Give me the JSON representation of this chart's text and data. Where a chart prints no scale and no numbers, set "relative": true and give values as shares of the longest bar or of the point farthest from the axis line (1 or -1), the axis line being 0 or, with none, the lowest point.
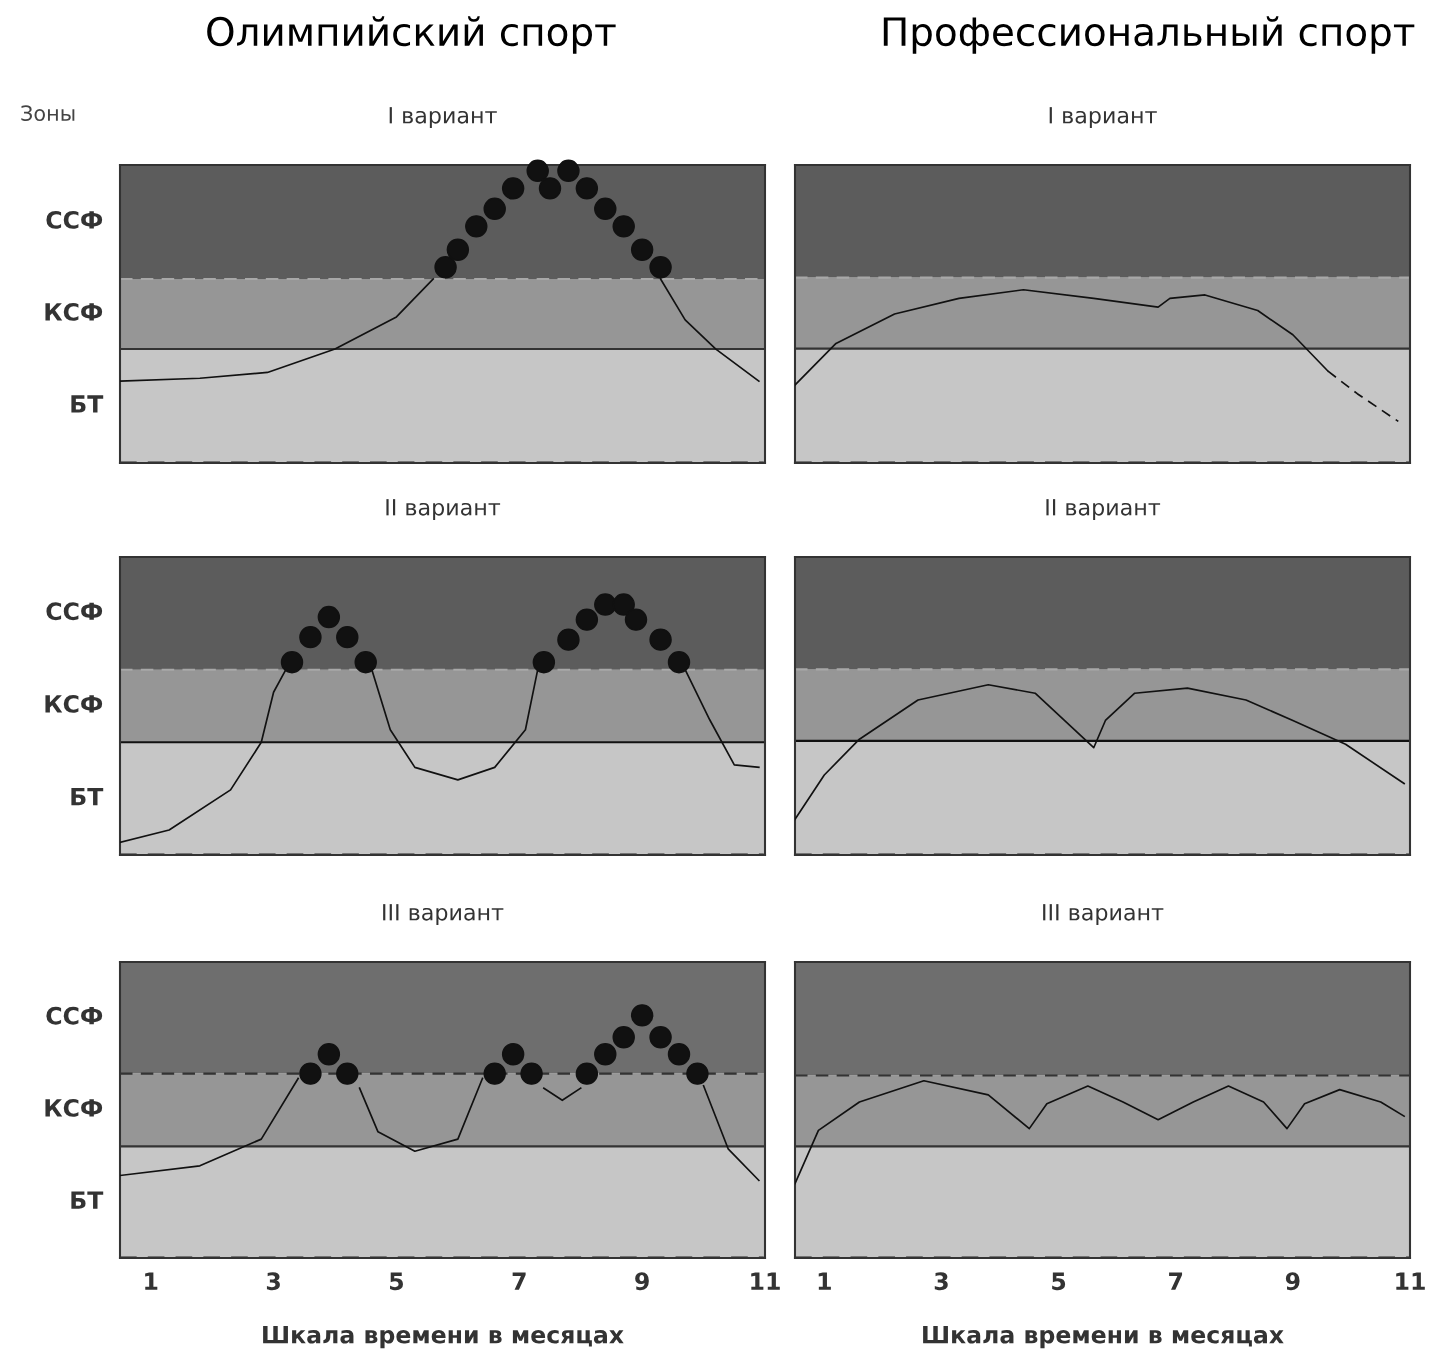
{
  "chart_data": [
    {
      "type": "line",
      "relative": true,
      "title": "I вариант",
      "annotations": [
        "Олимпийский спорт",
        "Зоны"
      ],
      "xlim": [
        0.5,
        11
      ],
      "xticks": [
        1,
        3,
        5,
        7,
        9,
        11
      ],
      "tick_labels": false,
      "bands": [
        {
          "axis": "y",
          "from": 0,
          "to": 0.39,
          "color": "#c6c6c6",
          "label": "БТ"
        },
        {
          "axis": "y",
          "from": 0.39,
          "to": 0.63,
          "color": "#969696",
          "label": "КСФ"
        },
        {
          "axis": "y",
          "from": 0.63,
          "to": 1.02,
          "color": "#5c5c5c",
          "label": "ССФ"
        }
      ],
      "ref_lines": [
        {
          "axis": "y",
          "value": 0.63,
          "color": "#a8a8a8",
          "line_style": "dashed"
        },
        {
          "axis": "y",
          "value": 0.39,
          "color": "#333333",
          "line_style": "solid"
        },
        {
          "axis": "y",
          "value": 0,
          "color": "#222222",
          "line_style": "dashed"
        }
      ],
      "series": [
        {
          "color": "#111111",
          "line_style": "solid",
          "x": [
            0.5,
            1.8,
            2.9,
            4.0,
            5.0,
            5.6,
            null,
            9.3,
            9.7,
            10.2,
            10.9
          ],
          "values": [
            0.28,
            0.29,
            0.31,
            0.39,
            0.5,
            0.63,
            null,
            0.63,
            0.49,
            0.39,
            0.28
          ]
        },
        {
          "type": "scatter",
          "color": "#111111",
          "marker": "circle",
          "x": [
            5.8,
            6.0,
            6.3,
            6.6,
            6.9,
            7.3,
            7.5,
            7.8,
            8.1,
            8.4,
            8.7,
            9.0,
            9.3
          ],
          "values": [
            0.67,
            0.73,
            0.81,
            0.87,
            0.94,
            1,
            0.94,
            1,
            0.94,
            0.87,
            0.81,
            0.73,
            0.67
          ]
        }
      ]
    },
    {
      "type": "line",
      "relative": true,
      "title": "I вариант",
      "annotations": [
        "Профессиональный спорт"
      ],
      "xlim": [
        0.5,
        11
      ],
      "xticks": [
        1,
        3,
        5,
        7,
        9,
        11
      ],
      "tick_labels": false,
      "bands": [
        {
          "axis": "y",
          "from": 0,
          "to": 0.66,
          "color": "#c6c6c6"
        },
        {
          "axis": "y",
          "from": 0.66,
          "to": 1.07,
          "color": "#969696"
        },
        {
          "axis": "y",
          "from": 1.07,
          "to": 1.72,
          "color": "#5c5c5c"
        }
      ],
      "ref_lines": [
        {
          "axis": "y",
          "value": 1.07,
          "color": "#a8a8a8",
          "line_style": "dashed"
        },
        {
          "axis": "y",
          "value": 0.66,
          "color": "#333333",
          "line_style": "solid"
        },
        {
          "axis": "y",
          "value": 0,
          "color": "#222222",
          "line_style": "dashed"
        }
      ],
      "series": [
        {
          "color": "#111111",
          "line_style": "solid",
          "x": [
            0.5,
            1.2,
            2.2,
            3.3,
            4.4,
            5.6,
            6.7,
            6.9,
            7.5,
            8.4,
            9.0,
            9.6
          ],
          "values": [
            0.45,
            0.69,
            0.86,
            0.95,
            1,
            0.95,
            0.9,
            0.95,
            0.97,
            0.88,
            0.74,
            0.53
          ]
        },
        {
          "color": "#111111",
          "line_style": "dashed",
          "x": [
            9.6,
            10.1,
            10.8
          ],
          "values": [
            0.53,
            0.4,
            0.24
          ]
        }
      ]
    },
    {
      "type": "line",
      "relative": true,
      "title": "II вариант",
      "xlim": [
        0.5,
        11
      ],
      "xticks": [
        1,
        3,
        5,
        7,
        9,
        11
      ],
      "tick_labels": false,
      "bands": [
        {
          "axis": "y",
          "from": 0,
          "to": 0.45,
          "color": "#c6c6c6",
          "label": "БТ"
        },
        {
          "axis": "y",
          "from": 0.45,
          "to": 0.74,
          "color": "#969696",
          "label": "КСФ"
        },
        {
          "axis": "y",
          "from": 0.74,
          "to": 1.19,
          "color": "#5c5c5c",
          "label": "ССФ"
        }
      ],
      "ref_lines": [
        {
          "axis": "y",
          "value": 0.74,
          "color": "#a8a8a8",
          "line_style": "dashed"
        },
        {
          "axis": "y",
          "value": 0.45,
          "color": "#111111",
          "line_style": "solid"
        },
        {
          "axis": "y",
          "value": 0,
          "color": "#222222",
          "line_style": "dashed"
        }
      ],
      "series": [
        {
          "color": "#111111",
          "line_style": "solid",
          "x": [
            0.5,
            1.3,
            2.3,
            2.8,
            3.0,
            3.2,
            null,
            4.6,
            4.9,
            5.3,
            6.0,
            6.6,
            7.1,
            7.3,
            null,
            9.7,
            10.1,
            10.5,
            10.9
          ],
          "values": [
            0.05,
            0.1,
            0.26,
            0.45,
            0.65,
            0.74,
            null,
            0.74,
            0.5,
            0.35,
            0.3,
            0.35,
            0.5,
            0.74,
            null,
            0.74,
            0.54,
            0.36,
            0.35
          ]
        },
        {
          "type": "scatter",
          "color": "#111111",
          "marker": "circle",
          "x": [
            3.3,
            3.6,
            3.9,
            4.2,
            4.5,
            7.4,
            7.8,
            8.1,
            8.4,
            8.7,
            8.9,
            9.3,
            9.6
          ],
          "values": [
            0.77,
            0.87,
            0.95,
            0.87,
            0.77,
            0.77,
            0.86,
            0.94,
            1,
            1,
            0.94,
            0.86,
            0.77
          ]
        }
      ]
    },
    {
      "type": "line",
      "relative": true,
      "title": "II вариант",
      "xlim": [
        0.5,
        11
      ],
      "xticks": [
        1,
        3,
        5,
        7,
        9,
        11
      ],
      "tick_labels": false,
      "bands": [
        {
          "axis": "y",
          "from": 0,
          "to": 0.67,
          "color": "#c6c6c6"
        },
        {
          "axis": "y",
          "from": 0.67,
          "to": 1.09,
          "color": "#969696"
        },
        {
          "axis": "y",
          "from": 1.09,
          "to": 1.75,
          "color": "#5c5c5c"
        }
      ],
      "ref_lines": [
        {
          "axis": "y",
          "value": 1.09,
          "color": "#a8a8a8",
          "line_style": "dashed"
        },
        {
          "axis": "y",
          "value": 0.67,
          "color": "#111111",
          "line_style": "solid"
        },
        {
          "axis": "y",
          "value": 0,
          "color": "#222222",
          "line_style": "dashed"
        }
      ],
      "series": [
        {
          "color": "#111111",
          "line_style": "solid",
          "x": [
            0.5,
            1.0,
            1.6,
            2.6,
            3.8,
            4.6,
            5.6,
            5.8,
            6.3,
            7.2,
            8.2,
            9.0,
            9.9,
            10.9
          ],
          "values": [
            0.21,
            0.47,
            0.68,
            0.91,
            1,
            0.95,
            0.63,
            0.79,
            0.95,
            0.98,
            0.91,
            0.79,
            0.65,
            0.42
          ]
        }
      ]
    },
    {
      "type": "line",
      "relative": true,
      "title": "III вариант",
      "xlabel": "Шкала времени в месяцах",
      "xlim": [
        0.5,
        11
      ],
      "xticks": [
        1,
        3,
        5,
        7,
        9,
        11
      ],
      "tick_labels": "x",
      "bands": [
        {
          "axis": "y",
          "from": 0,
          "to": 0.46,
          "color": "#c6c6c6",
          "label": "БТ"
        },
        {
          "axis": "y",
          "from": 0.46,
          "to": 0.76,
          "color": "#969696",
          "label": "КСФ"
        },
        {
          "axis": "y",
          "from": 0.76,
          "to": 1.22,
          "color": "#6e6e6e",
          "label": "ССФ"
        }
      ],
      "ref_lines": [
        {
          "axis": "y",
          "value": 0.76,
          "color": "#333333",
          "line_style": "dashed"
        },
        {
          "axis": "y",
          "value": 0.46,
          "color": "#333333",
          "line_style": "solid"
        },
        {
          "axis": "y",
          "value": 0,
          "color": "#222222",
          "line_style": "dashed"
        }
      ],
      "series": [
        {
          "color": "#111111",
          "line_style": "solid",
          "x": [
            0.5,
            1.8,
            2.8,
            3.4,
            null,
            4.4,
            4.7,
            5.3,
            6.0,
            6.4,
            null,
            7.4,
            7.7,
            8.0,
            null,
            10.0,
            10.4,
            10.9
          ],
          "values": [
            0.34,
            0.38,
            0.49,
            0.74,
            null,
            0.7,
            0.52,
            0.44,
            0.49,
            0.74,
            null,
            0.7,
            0.65,
            0.7,
            null,
            0.71,
            0.45,
            0.32
          ]
        },
        {
          "type": "scatter",
          "color": "#111111",
          "marker": "circle",
          "x": [
            3.6,
            3.9,
            4.2,
            6.6,
            6.9,
            7.2,
            8.1,
            8.4,
            8.7,
            9.0,
            9.3,
            9.6,
            9.9
          ],
          "values": [
            0.76,
            0.84,
            0.76,
            0.76,
            0.84,
            0.76,
            0.76,
            0.84,
            0.91,
            1,
            0.91,
            0.84,
            0.76
          ]
        }
      ]
    },
    {
      "type": "line",
      "relative": true,
      "title": "III вариант",
      "xlabel": "Шкала времени в месяцах",
      "xlim": [
        0.5,
        11
      ],
      "xticks": [
        1,
        3,
        5,
        7,
        9,
        11
      ],
      "tick_labels": "x",
      "bands": [
        {
          "axis": "y",
          "from": 0,
          "to": 0.63,
          "color": "#c6c6c6"
        },
        {
          "axis": "y",
          "from": 0.63,
          "to": 1.03,
          "color": "#969696"
        },
        {
          "axis": "y",
          "from": 1.03,
          "to": 1.67,
          "color": "#6e6e6e"
        }
      ],
      "ref_lines": [
        {
          "axis": "y",
          "value": 1.03,
          "color": "#333333",
          "line_style": "dashed"
        },
        {
          "axis": "y",
          "value": 0.63,
          "color": "#333333",
          "line_style": "solid"
        },
        {
          "axis": "y",
          "value": 0,
          "color": "#222222",
          "line_style": "dashed"
        }
      ],
      "series": [
        {
          "color": "#111111",
          "line_style": "solid",
          "x": [
            0.5,
            0.9,
            1.6,
            2.7,
            3.8,
            4.5,
            4.8,
            5.5,
            6.1,
            6.7,
            7.3,
            7.9,
            8.5,
            8.9,
            9.2,
            9.8,
            10.5,
            10.9
          ],
          "values": [
            0.42,
            0.72,
            0.88,
            1,
            0.92,
            0.73,
            0.87,
            0.97,
            0.88,
            0.78,
            0.88,
            0.97,
            0.88,
            0.73,
            0.87,
            0.95,
            0.88,
            0.8
          ]
        }
      ]
    }
  ]
}
